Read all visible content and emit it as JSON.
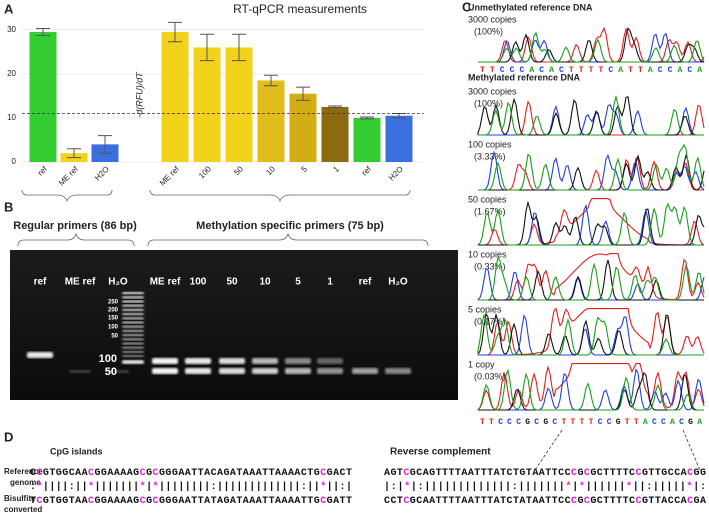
{
  "panels": {
    "a": "A",
    "b": "B",
    "c": "C",
    "d": "D"
  },
  "chart_data": {
    "type": "bar",
    "title": "RT-qPCR measurements",
    "y_label": "-d(RFU)/dT",
    "categories": [
      "ref",
      "ME ref",
      "H2O",
      "ME ref",
      "100",
      "50",
      "10",
      "5",
      "1",
      "ref",
      "H2O"
    ],
    "values": [
      29.5,
      2,
      4,
      29.5,
      26,
      26,
      18.5,
      15.5,
      12.5,
      10,
      10.5
    ],
    "errors": [
      0.8,
      1,
      2,
      2.2,
      3,
      3,
      1.2,
      1.5,
      0.2,
      0.2,
      0.5
    ],
    "colors": [
      "#33cc33",
      "#f2d21b",
      "#3b6fe0",
      "#f2d21b",
      "#f2d21b",
      "#f2d21b",
      "#e0bd1a",
      "#d2ad16",
      "#8c6b10",
      "#33cc33",
      "#3b6fe0"
    ],
    "ylim": [
      0,
      32
    ],
    "yticks": [
      0,
      10,
      20,
      30
    ],
    "threshold": 11,
    "grid": true
  },
  "gel": {
    "groups": [
      "Regular primers (86 bp)",
      "Methylation specific primers (75 bp)"
    ],
    "lanes": [
      "ref",
      "ME ref",
      "H₂O",
      "ME ref",
      "100",
      "50",
      "10",
      "5",
      "1",
      "ref",
      "H₂O"
    ],
    "ladder": [
      "250",
      "200",
      "150",
      "100",
      "50"
    ],
    "size_markers": [
      "100",
      "50"
    ]
  },
  "chromatograms": {
    "title_unmethylated": "Unmethylated reference DNA",
    "title_methylated": "Methylated reference DNA",
    "samples": [
      {
        "copies": "3000 copies",
        "percent": "(100%)"
      },
      {
        "copies": "3000 copies",
        "percent": "(100%)"
      },
      {
        "copies": "100 copies",
        "percent": "(3.33%)"
      },
      {
        "copies": "50 copies",
        "percent": "(1.67%)"
      },
      {
        "copies": "10 copies",
        "percent": "(0.33%)"
      },
      {
        "copies": "5 copies",
        "percent": "(0.17%)"
      },
      {
        "copies": "1 copy",
        "percent": "(0.03%)"
      }
    ],
    "sequence_top": "TTCCCACACTTTTCATTACCACA",
    "sequence_bottom": "TTCCCGCGCTTTTCCGTTACCACGA"
  },
  "alignment": {
    "cpg_label": "CpG islands",
    "rc_label": "Reverse complement",
    "row_labels": [
      "Reference",
      "genome",
      "Bisulfite",
      "converted"
    ],
    "reference": [
      "CCGTGGCAACGGAAAAGCGCGGGAATTACAGATAAATTAAAACTGCGACT",
      "AGTCGCAGTTTTAATTTATCTGTAATTCCCGCGCTTTTCCGTTGCCACGG"
    ],
    "match": [
      ":*||||:||*|||||||*|*||||||||:|||||||||||||:||*||:|",
      "|:|*|:|||||||||||||:|||||||*|*||||||*||:|||||*|:"
    ],
    "bisulfite": [
      "TCGTGGTAACGGAAAAGCGCGGGAATTATAGATAAATTAAAATTGCGATT",
      "CCTCGCAATTTTAATTTATCTATAATTCCCGCGCTTTTCCGTTACCACGA"
    ]
  }
}
